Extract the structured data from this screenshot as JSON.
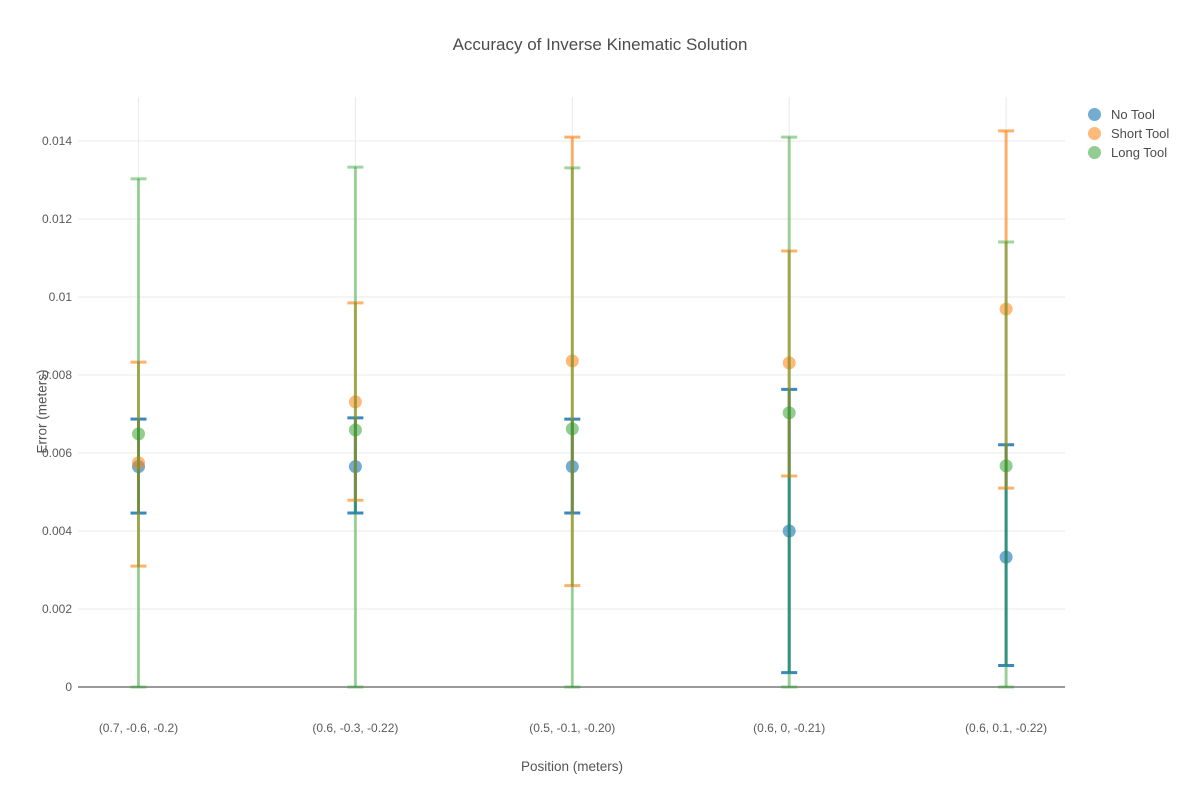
{
  "chart_data": {
    "type": "scatter",
    "title": "Accuracy of Inverse Kinematic Solution",
    "xlabel": "Position (meters)",
    "ylabel": "Error (meters)",
    "categories": [
      "(0.7, -0.6, -0.2)",
      "(0.6, -0.3, -0.22)",
      "(0.5, -0.1, -0.20)",
      "(0.6, 0, -0.21)",
      "(0.6, 0.1, -0.22)"
    ],
    "y_ticks": [
      "0",
      "0.002",
      "0.004",
      "0.006",
      "0.008",
      "0.01",
      "0.012",
      "0.014"
    ],
    "y_tick_values": [
      0,
      0.002,
      0.004,
      0.006,
      0.008,
      0.01,
      0.012,
      0.014
    ],
    "ylim": [
      0,
      0.01513
    ],
    "grid": true,
    "legend_position": "outside-top-right",
    "error_bars": "vertical, cap-ended, symmetric about marker",
    "series": [
      {
        "name": "No Tool",
        "marker_color": "rgba(31,119,180,0.62)",
        "error_color": "rgba(31,119,180,0.88)",
        "values": [
          0.00565,
          0.00565,
          0.00565,
          0.004,
          0.00333
        ],
        "upper": [
          0.00687,
          0.0069,
          0.00687,
          0.00763,
          0.00621
        ],
        "lower": [
          0.00446,
          0.00446,
          0.00446,
          0.00037,
          0.00055
        ]
      },
      {
        "name": "Short Tool",
        "marker_color": "rgba(255,127,14,0.55)",
        "error_color": "rgba(255,127,14,0.60)",
        "values": [
          0.00575,
          0.00731,
          0.00836,
          0.00831,
          0.00969
        ],
        "upper": [
          0.00833,
          0.00985,
          0.0141,
          0.01118,
          0.01426
        ],
        "lower": [
          0.0031,
          0.00479,
          0.0026,
          0.00541,
          0.0051
        ]
      },
      {
        "name": "Long Tool",
        "marker_color": "rgba(44,160,44,0.52)",
        "error_color": "rgba(44,160,44,0.45)",
        "values": [
          0.00649,
          0.00659,
          0.00662,
          0.00703,
          0.00567
        ],
        "upper": [
          0.01303,
          0.01333,
          0.01331,
          0.0141,
          0.01141
        ],
        "lower": [
          0.0,
          0.0,
          0.0,
          0.0,
          0.0
        ]
      }
    ],
    "colors": {
      "gridline": "#e9e9e9",
      "zeroline": "#999999",
      "title_text": "#4c4c4c",
      "tick_text": "#5a5a5a",
      "axis_title_text": "#555555"
    }
  }
}
